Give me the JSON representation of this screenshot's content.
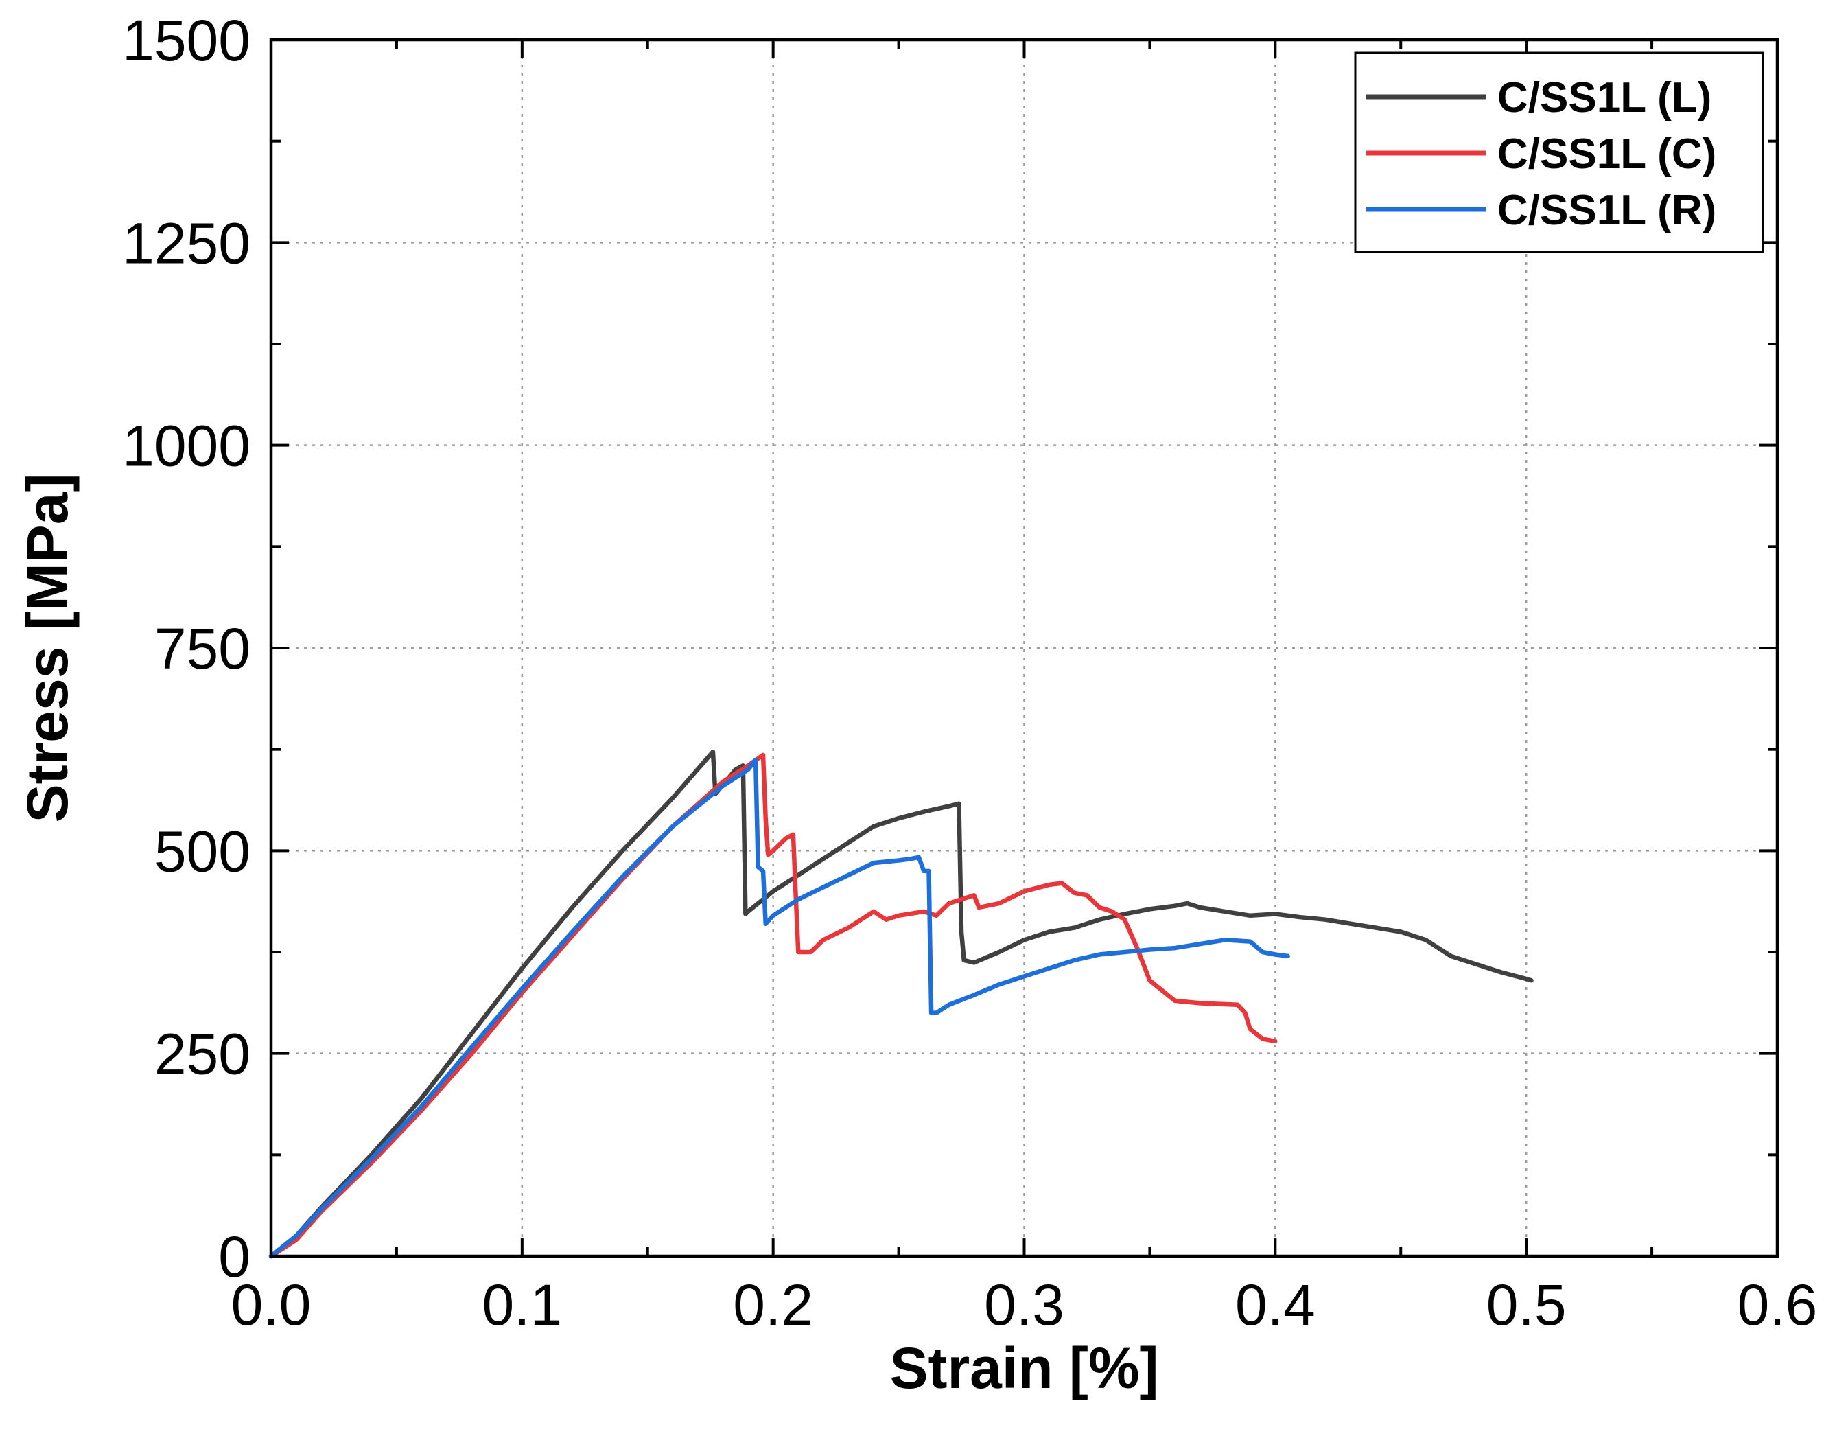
{
  "chart_data": {
    "type": "line",
    "xlabel": "Strain [%]",
    "ylabel": "Stress [MPa]",
    "xlim": [
      0,
      0.6
    ],
    "ylim": [
      0,
      1500
    ],
    "x_ticks": [
      "0.0",
      "0.1",
      "0.2",
      "0.3",
      "0.4",
      "0.5",
      "0.6"
    ],
    "y_ticks": [
      "0",
      "250",
      "500",
      "750",
      "1000",
      "1250",
      "1500"
    ],
    "grid": true,
    "legend_position": "top-right",
    "series": [
      {
        "name": "C/SS1L (L)",
        "color": "#404040",
        "points": [
          [
            0,
            0
          ],
          [
            0.01,
            25
          ],
          [
            0.02,
            60
          ],
          [
            0.04,
            125
          ],
          [
            0.06,
            195
          ],
          [
            0.08,
            275
          ],
          [
            0.1,
            355
          ],
          [
            0.12,
            430
          ],
          [
            0.14,
            500
          ],
          [
            0.16,
            565
          ],
          [
            0.176,
            622
          ],
          [
            0.177,
            570
          ],
          [
            0.185,
            600
          ],
          [
            0.188,
            605
          ],
          [
            0.189,
            422
          ],
          [
            0.19,
            425
          ],
          [
            0.2,
            450
          ],
          [
            0.21,
            470
          ],
          [
            0.22,
            490
          ],
          [
            0.23,
            510
          ],
          [
            0.24,
            530
          ],
          [
            0.25,
            540
          ],
          [
            0.26,
            548
          ],
          [
            0.27,
            555
          ],
          [
            0.274,
            558
          ],
          [
            0.275,
            400
          ],
          [
            0.276,
            365
          ],
          [
            0.28,
            362
          ],
          [
            0.29,
            375
          ],
          [
            0.3,
            390
          ],
          [
            0.31,
            400
          ],
          [
            0.32,
            405
          ],
          [
            0.33,
            415
          ],
          [
            0.34,
            422
          ],
          [
            0.35,
            428
          ],
          [
            0.36,
            432
          ],
          [
            0.365,
            435
          ],
          [
            0.37,
            430
          ],
          [
            0.38,
            425
          ],
          [
            0.39,
            420
          ],
          [
            0.4,
            422
          ],
          [
            0.41,
            418
          ],
          [
            0.42,
            415
          ],
          [
            0.43,
            410
          ],
          [
            0.44,
            405
          ],
          [
            0.45,
            400
          ],
          [
            0.46,
            390
          ],
          [
            0.465,
            380
          ],
          [
            0.47,
            370
          ],
          [
            0.48,
            360
          ],
          [
            0.49,
            350
          ],
          [
            0.5,
            342
          ],
          [
            0.502,
            340
          ]
        ]
      },
      {
        "name": "C/SS1L (C)",
        "color": "#e8373a",
        "points": [
          [
            0,
            0
          ],
          [
            0.01,
            20
          ],
          [
            0.02,
            55
          ],
          [
            0.04,
            115
          ],
          [
            0.06,
            180
          ],
          [
            0.08,
            250
          ],
          [
            0.1,
            325
          ],
          [
            0.12,
            395
          ],
          [
            0.14,
            465
          ],
          [
            0.16,
            530
          ],
          [
            0.18,
            585
          ],
          [
            0.19,
            605
          ],
          [
            0.196,
            618
          ],
          [
            0.197,
            540
          ],
          [
            0.198,
            495
          ],
          [
            0.2,
            500
          ],
          [
            0.205,
            515
          ],
          [
            0.208,
            520
          ],
          [
            0.209,
            445
          ],
          [
            0.21,
            375
          ],
          [
            0.215,
            375
          ],
          [
            0.22,
            390
          ],
          [
            0.23,
            405
          ],
          [
            0.24,
            425
          ],
          [
            0.245,
            415
          ],
          [
            0.25,
            420
          ],
          [
            0.26,
            425
          ],
          [
            0.265,
            420
          ],
          [
            0.27,
            435
          ],
          [
            0.28,
            445
          ],
          [
            0.282,
            430
          ],
          [
            0.29,
            435
          ],
          [
            0.3,
            450
          ],
          [
            0.31,
            458
          ],
          [
            0.315,
            460
          ],
          [
            0.32,
            448
          ],
          [
            0.325,
            445
          ],
          [
            0.33,
            430
          ],
          [
            0.335,
            425
          ],
          [
            0.34,
            415
          ],
          [
            0.345,
            380
          ],
          [
            0.35,
            340
          ],
          [
            0.36,
            315
          ],
          [
            0.37,
            312
          ],
          [
            0.385,
            310
          ],
          [
            0.388,
            300
          ],
          [
            0.39,
            280
          ],
          [
            0.395,
            268
          ],
          [
            0.4,
            265
          ]
        ]
      },
      {
        "name": "C/SS1L (R)",
        "color": "#1f6fdb",
        "points": [
          [
            0,
            0
          ],
          [
            0.01,
            25
          ],
          [
            0.02,
            58
          ],
          [
            0.04,
            120
          ],
          [
            0.06,
            185
          ],
          [
            0.08,
            258
          ],
          [
            0.1,
            330
          ],
          [
            0.12,
            400
          ],
          [
            0.14,
            468
          ],
          [
            0.16,
            530
          ],
          [
            0.18,
            580
          ],
          [
            0.19,
            600
          ],
          [
            0.193,
            612
          ],
          [
            0.194,
            480
          ],
          [
            0.196,
            475
          ],
          [
            0.197,
            410
          ],
          [
            0.2,
            420
          ],
          [
            0.21,
            440
          ],
          [
            0.22,
            455
          ],
          [
            0.23,
            470
          ],
          [
            0.24,
            485
          ],
          [
            0.25,
            488
          ],
          [
            0.255,
            490
          ],
          [
            0.258,
            492
          ],
          [
            0.26,
            475
          ],
          [
            0.262,
            475
          ],
          [
            0.263,
            300
          ],
          [
            0.265,
            300
          ],
          [
            0.27,
            310
          ],
          [
            0.28,
            322
          ],
          [
            0.29,
            335
          ],
          [
            0.3,
            345
          ],
          [
            0.31,
            355
          ],
          [
            0.32,
            365
          ],
          [
            0.33,
            372
          ],
          [
            0.34,
            375
          ],
          [
            0.35,
            378
          ],
          [
            0.36,
            380
          ],
          [
            0.37,
            385
          ],
          [
            0.38,
            390
          ],
          [
            0.39,
            388
          ],
          [
            0.395,
            375
          ],
          [
            0.4,
            372
          ],
          [
            0.405,
            370
          ]
        ]
      }
    ]
  }
}
